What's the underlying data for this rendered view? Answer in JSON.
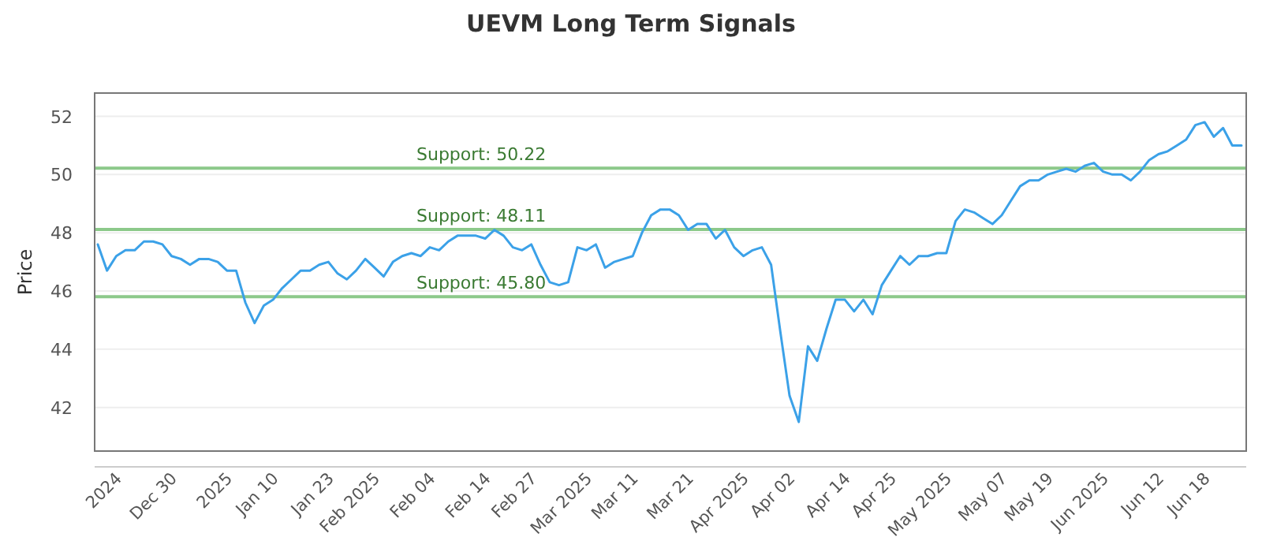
{
  "chart_data": {
    "type": "line",
    "title": "UEVM Long Term Signals",
    "ylabel": "Price",
    "categories": [
      null,
      null,
      "2024",
      null,
      null,
      null,
      null,
      null,
      "Dec 30",
      null,
      null,
      null,
      null,
      null,
      "2025",
      null,
      null,
      null,
      null,
      "Jan 10",
      null,
      null,
      null,
      null,
      null,
      "Jan 23",
      null,
      null,
      null,
      null,
      "Feb 2025",
      null,
      null,
      null,
      null,
      null,
      "Feb 04",
      null,
      null,
      null,
      null,
      null,
      "Feb 14",
      null,
      null,
      null,
      null,
      "Feb 27",
      null,
      null,
      null,
      null,
      null,
      "Mar 2025",
      null,
      null,
      null,
      null,
      "Mar 11",
      null,
      null,
      null,
      null,
      null,
      "Mar 21",
      null,
      null,
      null,
      null,
      null,
      "Apr 2025",
      null,
      null,
      null,
      null,
      "Apr 02",
      null,
      null,
      null,
      null,
      null,
      "Apr 14",
      null,
      null,
      null,
      null,
      "Apr 25",
      null,
      null,
      null,
      null,
      null,
      "May 2025",
      null,
      null,
      null,
      null,
      null,
      "May 07",
      null,
      null,
      null,
      null,
      "May 19",
      null,
      null,
      null,
      null,
      null,
      "Jun 2025",
      null,
      null,
      null,
      null,
      null,
      "Jun 12",
      null,
      null,
      null,
      null,
      "Jun 18",
      null,
      null,
      null,
      null
    ],
    "series": [
      {
        "color": "#3ba1e8",
        "values": [
          47.6,
          46.7,
          47.2,
          47.4,
          47.4,
          47.7,
          47.7,
          47.6,
          47.2,
          47.1,
          46.9,
          47.1,
          47.1,
          47.0,
          46.7,
          46.7,
          45.6,
          44.9,
          45.5,
          45.7,
          46.1,
          46.4,
          46.7,
          46.7,
          46.9,
          47.0,
          46.6,
          46.4,
          46.7,
          47.1,
          46.8,
          46.5,
          47.0,
          47.2,
          47.3,
          47.2,
          47.5,
          47.4,
          47.7,
          47.9,
          47.9,
          47.9,
          47.8,
          48.1,
          47.9,
          47.5,
          47.4,
          47.6,
          46.9,
          46.3,
          46.2,
          46.3,
          47.5,
          47.4,
          47.6,
          46.8,
          47.0,
          47.1,
          47.2,
          48.0,
          48.6,
          48.8,
          48.8,
          48.6,
          48.1,
          48.3,
          48.3,
          47.8,
          48.1,
          47.5,
          47.2,
          47.4,
          47.5,
          46.9,
          44.6,
          42.4,
          41.5,
          44.1,
          43.6,
          44.7,
          45.7,
          45.7,
          45.3,
          45.7,
          45.2,
          46.2,
          46.7,
          47.2,
          46.9,
          47.2,
          47.2,
          47.3,
          47.3,
          48.4,
          48.8,
          48.7,
          48.5,
          48.3,
          48.6,
          49.1,
          49.6,
          49.8,
          49.8,
          50.0,
          50.1,
          50.2,
          50.1,
          50.3,
          50.4,
          50.1,
          50.0,
          50.0,
          49.8,
          50.1,
          50.5,
          50.7,
          50.8,
          51.0,
          51.2,
          51.7,
          51.8,
          51.3,
          51.6,
          51.0,
          51.0
        ]
      }
    ],
    "ylim": [
      40.5,
      52.8
    ],
    "yticks": [
      42,
      44,
      46,
      48,
      50,
      52
    ],
    "grid": "y",
    "ref_lines": [
      {
        "axis": "y",
        "value": 50.22,
        "label": "Support: 50.22",
        "color": "#8cc98a"
      },
      {
        "axis": "y",
        "value": 48.11,
        "label": "Support: 48.11",
        "color": "#8cc98a"
      },
      {
        "axis": "y",
        "value": 45.8,
        "label": "Support: 45.80",
        "color": "#8cc98a"
      }
    ]
  }
}
